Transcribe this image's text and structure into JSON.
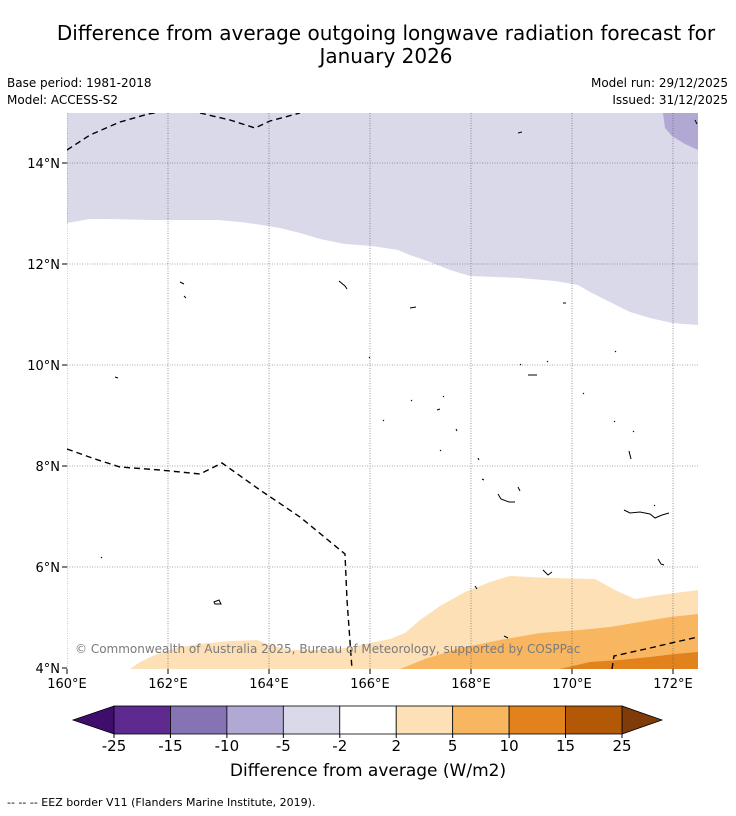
{
  "title_line1": "Difference from average outgoing longwave radiation forecast for",
  "title_line2": "January 2026",
  "base_period": "Base period: 1981-2018",
  "model": "Model: ACCESS-S2",
  "model_run": "Model run: 29/12/2025",
  "issued": "Issued: 31/12/2025",
  "copyright": "© Commonwealth of Australia 2025, Bureau of Meteorology, supported by COSPPac",
  "lat_labels": [
    "14°N",
    "12°N",
    "10°N",
    "8°N",
    "6°N",
    "4°N"
  ],
  "lon_labels": [
    "160°E",
    "162°E",
    "164°E",
    "166°E",
    "168°E",
    "170°E",
    "172°E"
  ],
  "colorbar": {
    "ticks": [
      "-25",
      "-15",
      "-10",
      "-5",
      "-2",
      "2",
      "5",
      "10",
      "15",
      "25"
    ],
    "colors": [
      "#3f0d6b",
      "#5e2a8f",
      "#8573b3",
      "#b1a8d3",
      "#d9d9ea",
      "#ffffff",
      "#fde0b5",
      "#f9b661",
      "#e1821d",
      "#b35807",
      "#7f3b08"
    ],
    "title": "Difference from average (W/m2)"
  },
  "footnote": "--  --  -- EEZ border V11 (Flanders Marine Institute, 2019)."
}
